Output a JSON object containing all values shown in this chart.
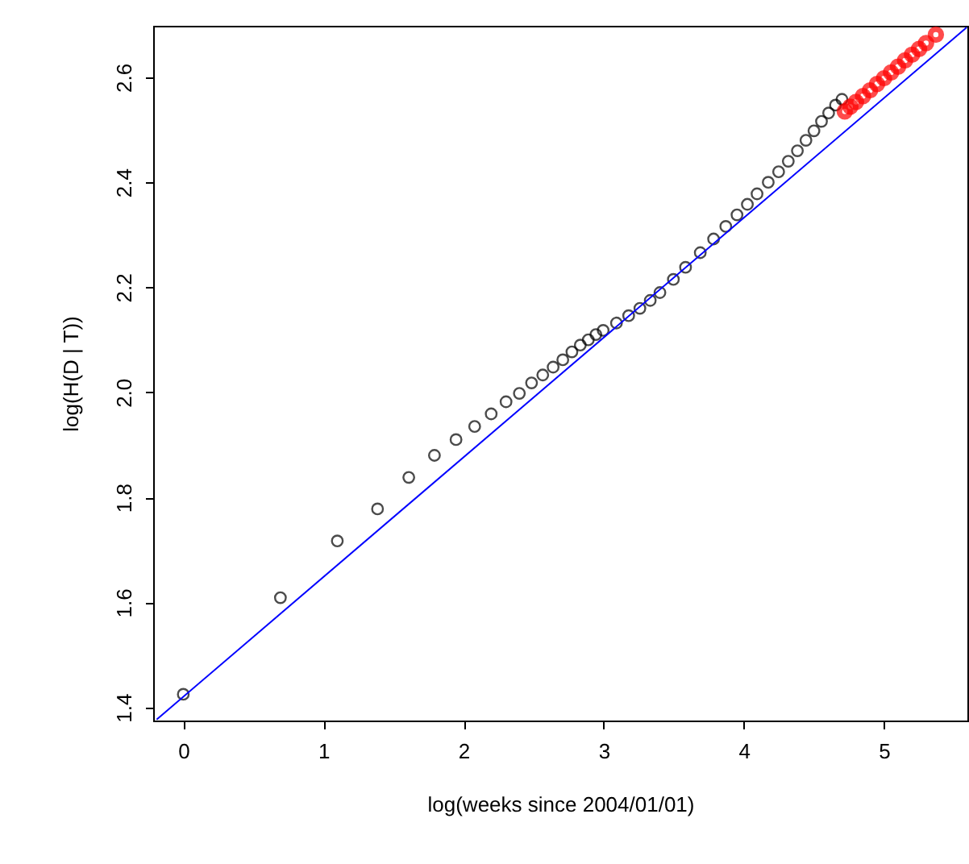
{
  "chart_data": {
    "type": "scatter",
    "xlabel": "log(weeks since 2004/01/01)",
    "ylabel": "log(H(D | T))",
    "xlim": [
      -0.215,
      5.595
    ],
    "ylim": [
      1.375,
      2.698
    ],
    "xticks": [
      0,
      1,
      2,
      3,
      4,
      5
    ],
    "yticks": [
      1.4,
      1.6,
      1.8,
      {
        "value": 2.0,
        "label": "2.0"
      },
      2.2,
      2.4,
      2.6
    ],
    "grid": false,
    "series": [
      {
        "color": "#000000",
        "marker": "circle",
        "x": [
          0,
          0.693,
          1.099,
          1.386,
          1.609,
          1.792,
          1.946,
          2.079,
          2.197,
          2.303,
          2.398,
          2.485,
          2.565,
          2.639,
          2.708,
          2.773,
          2.833,
          2.89,
          2.944,
          2.996,
          3.091,
          3.178,
          3.258,
          3.332,
          3.401,
          3.497,
          3.584,
          3.689,
          3.784,
          3.871,
          3.951,
          4.025,
          4.094,
          4.174,
          4.248,
          4.317,
          4.382,
          4.443,
          4.5,
          4.554,
          4.605,
          4.654,
          4.7
        ],
        "values": [
          1.425,
          1.609,
          1.717,
          1.778,
          1.838,
          1.88,
          1.91,
          1.935,
          1.959,
          1.982,
          1.998,
          2.018,
          2.033,
          2.048,
          2.062,
          2.077,
          2.09,
          2.1,
          2.11,
          2.118,
          2.132,
          2.146,
          2.16,
          2.175,
          2.19,
          2.215,
          2.238,
          2.266,
          2.292,
          2.316,
          2.338,
          2.358,
          2.378,
          2.4,
          2.42,
          2.44,
          2.46,
          2.48,
          2.498,
          2.516,
          2.532,
          2.547,
          2.558
        ]
      },
      {
        "color": "#ff0000",
        "marker": "circle",
        "x": [
          4.72,
          4.76,
          4.8,
          4.85,
          4.9,
          4.95,
          5.0,
          5.05,
          5.1,
          5.15,
          5.2,
          5.25,
          5.3,
          5.37
        ],
        "values": [
          2.535,
          2.544,
          2.553,
          2.564,
          2.575,
          2.587,
          2.598,
          2.609,
          2.62,
          2.632,
          2.643,
          2.654,
          2.665,
          2.681
        ]
      },
      {
        "type": "line",
        "color": "#0000ff",
        "x": [
          -0.19,
          5.59
        ],
        "values": [
          1.377,
          2.695
        ]
      }
    ]
  }
}
